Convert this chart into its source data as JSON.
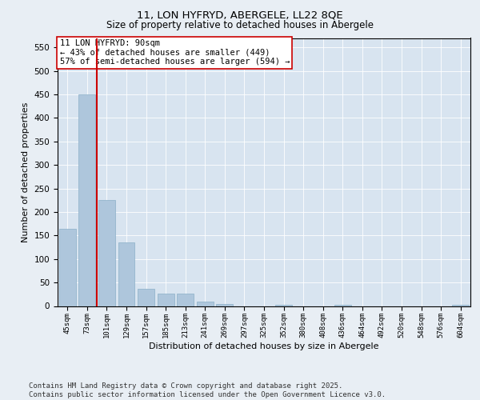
{
  "title": "11, LON HYFRYD, ABERGELE, LL22 8QE",
  "subtitle": "Size of property relative to detached houses in Abergele",
  "xlabel": "Distribution of detached houses by size in Abergele",
  "ylabel": "Number of detached properties",
  "categories": [
    "45sqm",
    "73sqm",
    "101sqm",
    "129sqm",
    "157sqm",
    "185sqm",
    "213sqm",
    "241sqm",
    "269sqm",
    "297sqm",
    "325sqm",
    "352sqm",
    "380sqm",
    "408sqm",
    "436sqm",
    "464sqm",
    "492sqm",
    "520sqm",
    "548sqm",
    "576sqm",
    "604sqm"
  ],
  "values": [
    165,
    450,
    225,
    135,
    37,
    27,
    27,
    9,
    4,
    0,
    0,
    3,
    0,
    0,
    3,
    0,
    0,
    0,
    0,
    0,
    3
  ],
  "bar_color": "#aec6dc",
  "bar_edge_color": "#8aafc8",
  "vline_color": "#cc0000",
  "annotation_text": "11 LON HYFRYD: 90sqm\n← 43% of detached houses are smaller (449)\n57% of semi-detached houses are larger (594) →",
  "annotation_box_color": "#ffffff",
  "annotation_box_edge": "#cc0000",
  "ylim": [
    0,
    570
  ],
  "yticks": [
    0,
    50,
    100,
    150,
    200,
    250,
    300,
    350,
    400,
    450,
    500,
    550
  ],
  "bg_color": "#e8eef4",
  "plot_bg_color": "#d8e4f0",
  "footer_line1": "Contains HM Land Registry data © Crown copyright and database right 2025.",
  "footer_line2": "Contains public sector information licensed under the Open Government Licence v3.0.",
  "title_fontsize": 9.5,
  "subtitle_fontsize": 8.5,
  "footer_fontsize": 6.5,
  "annotation_fontsize": 7.5,
  "xlabel_fontsize": 8,
  "ylabel_fontsize": 8
}
